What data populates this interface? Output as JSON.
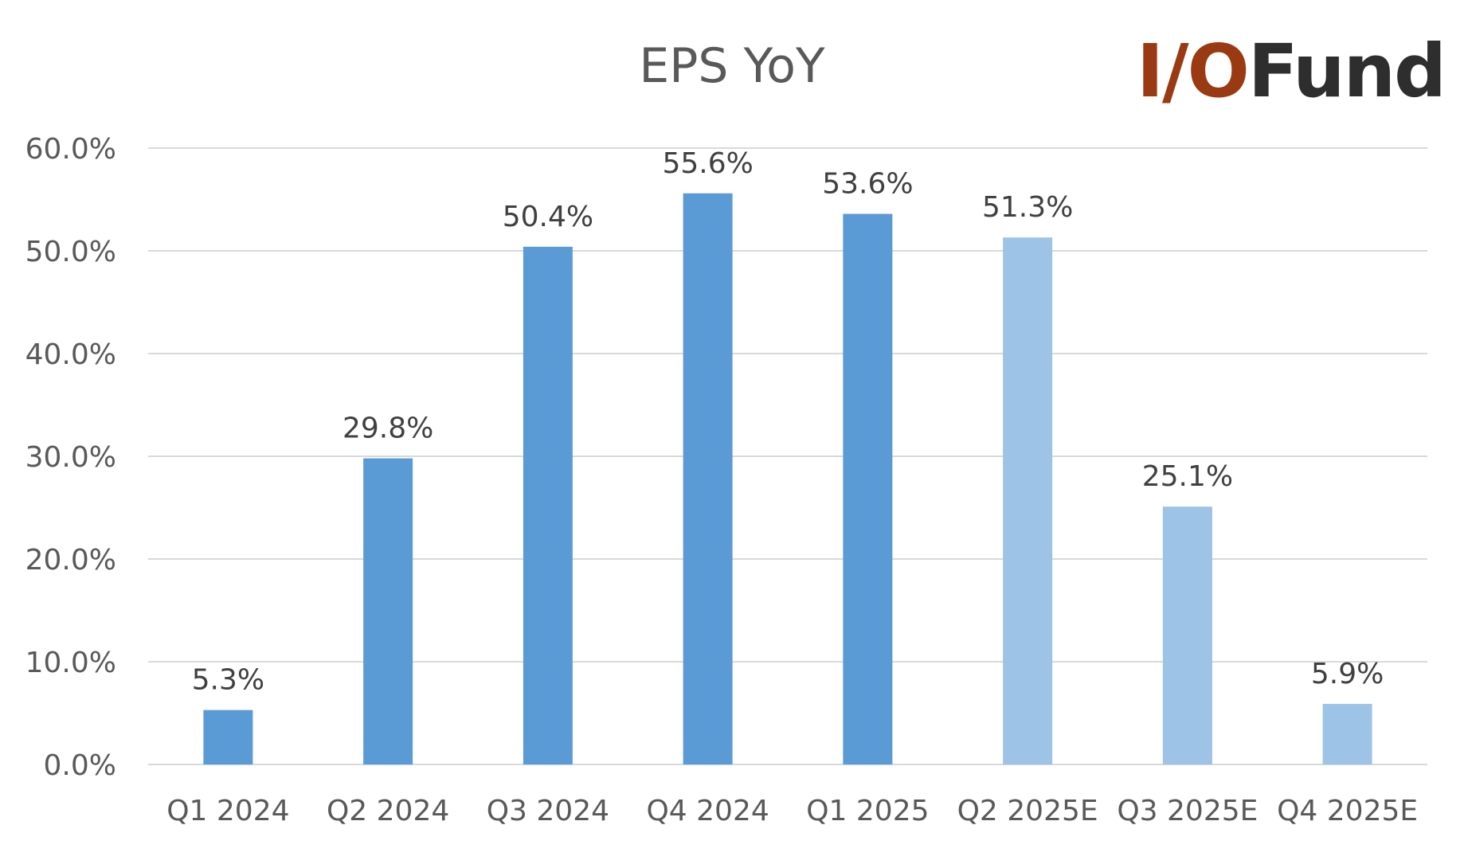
{
  "chart_data": {
    "type": "bar",
    "title": "EPS YoY",
    "categories": [
      "Q1 2024",
      "Q2 2024",
      "Q3 2024",
      "Q4 2024",
      "Q1 2025",
      "Q2 2025E",
      "Q3 2025E",
      "Q4 2025E"
    ],
    "values": [
      5.3,
      29.8,
      50.4,
      55.6,
      53.6,
      51.3,
      25.1,
      5.9
    ],
    "data_labels": [
      "5.3%",
      "29.8%",
      "50.4%",
      "55.6%",
      "53.6%",
      "51.3%",
      "25.1%",
      "5.9%"
    ],
    "estimate": [
      false,
      false,
      false,
      false,
      false,
      true,
      true,
      true
    ],
    "ylim": [
      0,
      60
    ],
    "yticks": [
      "0.0%",
      "10.0%",
      "20.0%",
      "30.0%",
      "40.0%",
      "50.0%",
      "60.0%"
    ],
    "xlabel": "",
    "ylabel": "",
    "grid": true,
    "legend": "none",
    "colors": {
      "actual": "#5b9bd5",
      "estimate": "#9dc3e6",
      "grid": "#d9d9d9",
      "text": "#595959"
    }
  },
  "logo": {
    "part1": "I/O",
    "part2": "Fund",
    "color1": "#9a3a12",
    "color2": "#2e2e2e"
  }
}
